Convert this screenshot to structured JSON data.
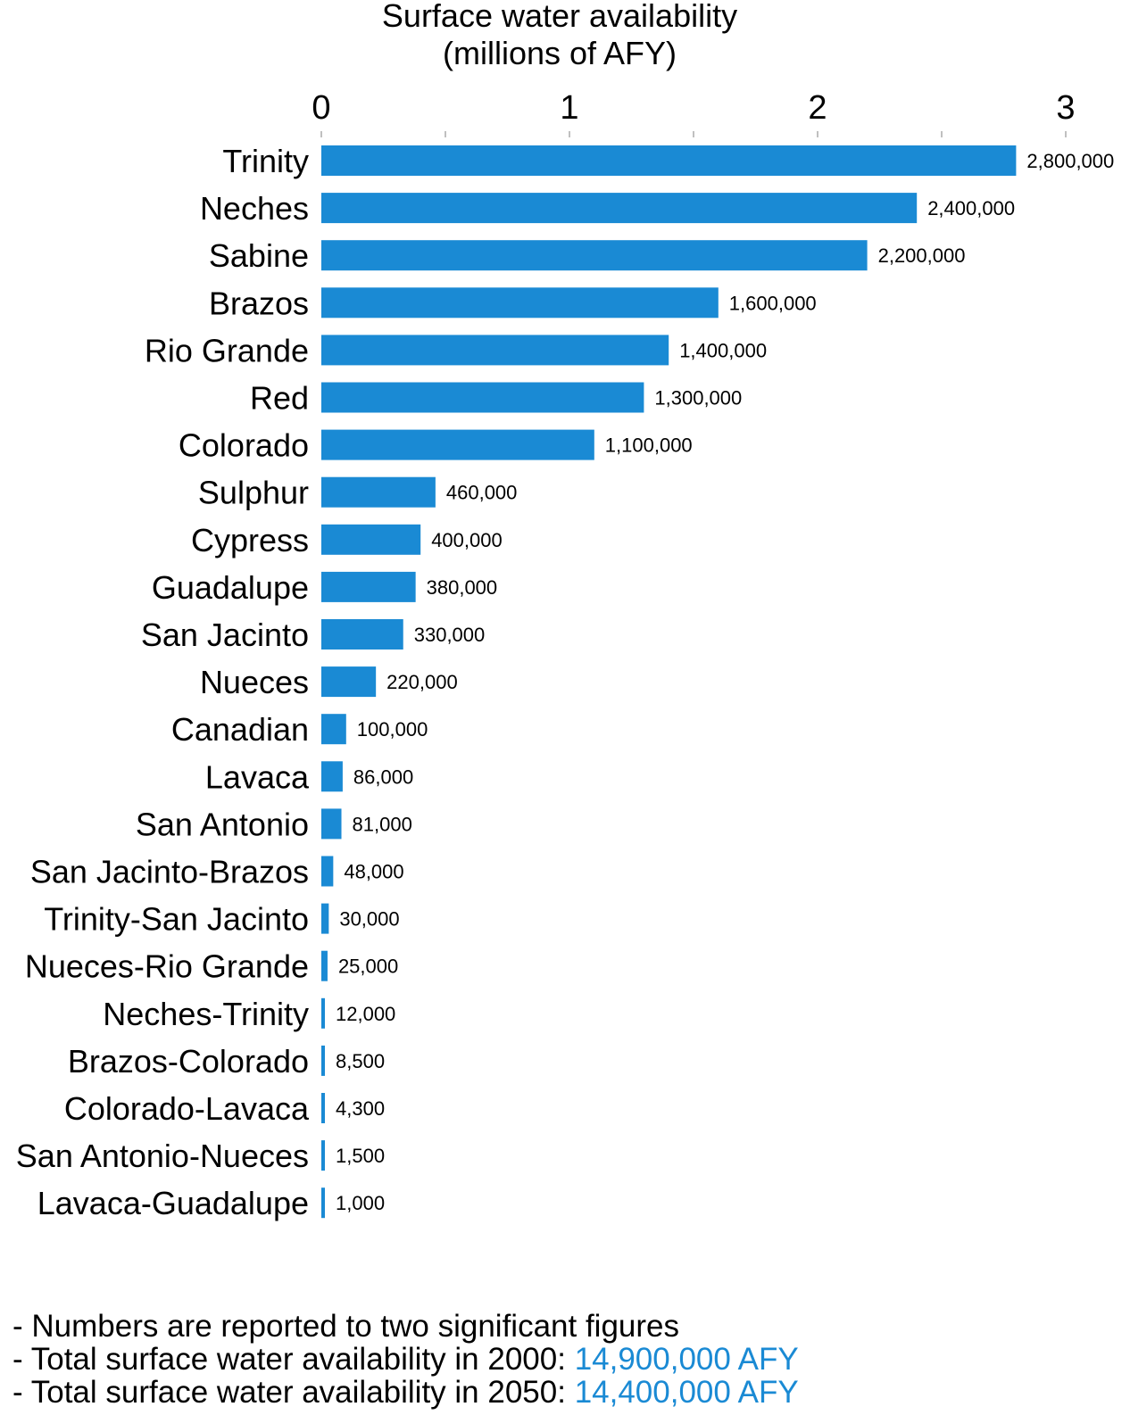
{
  "chart_data": {
    "type": "bar",
    "orientation": "horizontal",
    "title": "Surface water availability",
    "subtitle": "(millions of AFY)",
    "categories": [
      "Trinity",
      "Neches",
      "Sabine",
      "Brazos",
      "Rio Grande",
      "Red",
      "Colorado",
      "Sulphur",
      "Cypress",
      "Guadalupe",
      "San Jacinto",
      "Nueces",
      "Canadian",
      "Lavaca",
      "San Antonio",
      "San Jacinto-Brazos",
      "Trinity-San Jacinto",
      "Nueces-Rio Grande",
      "Neches-Trinity",
      "Brazos-Colorado",
      "Colorado-Lavaca",
      "San Antonio-Nueces",
      "Lavaca-Guadalupe"
    ],
    "values": [
      2800000,
      2400000,
      2200000,
      1600000,
      1400000,
      1300000,
      1100000,
      460000,
      400000,
      380000,
      330000,
      220000,
      100000,
      86000,
      81000,
      48000,
      30000,
      25000,
      12000,
      8500,
      4300,
      1500,
      1000
    ],
    "value_labels": [
      "2,800,000",
      "2,400,000",
      "2,200,000",
      "1,600,000",
      "1,400,000",
      "1,300,000",
      "1,100,000",
      "460,000",
      "400,000",
      "380,000",
      "330,000",
      "220,000",
      "100,000",
      "86,000",
      "81,000",
      "48,000",
      "30,000",
      "25,000",
      "12,000",
      "8,500",
      "4,300",
      "1,500",
      "1,000"
    ],
    "x_ticks": [
      "0",
      "1",
      "2",
      "3"
    ],
    "xlim": [
      0,
      3000000
    ],
    "axis_position": "top",
    "grid": false,
    "bar_color": "#1a8ad4"
  },
  "notes": [
    {
      "text": "- Numbers are reported to two significant figures",
      "highlight": ""
    },
    {
      "text": "- Total surface water availability in 2000: ",
      "highlight": "14,900,000 AFY"
    },
    {
      "text": "- Total surface water availability in 2050: ",
      "highlight": "14,400,000 AFY"
    }
  ]
}
